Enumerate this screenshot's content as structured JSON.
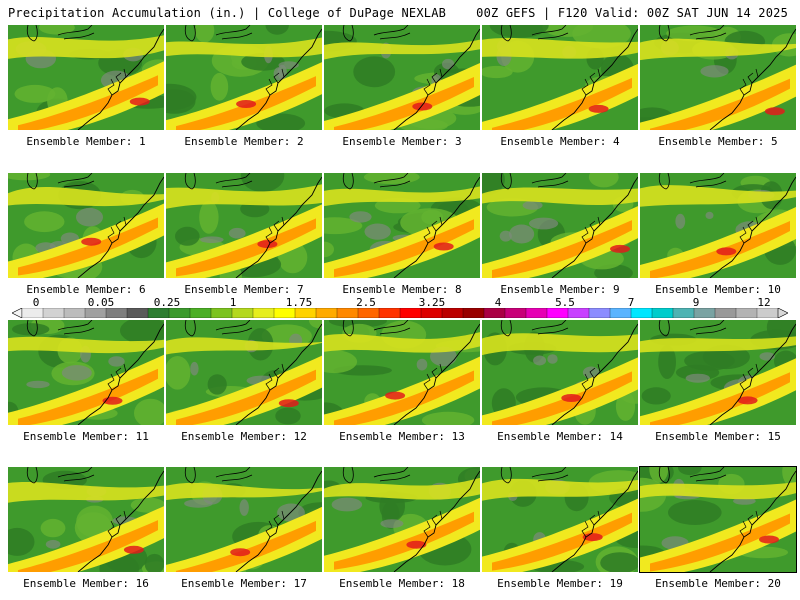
{
  "header": {
    "title": "Precipitation Accumulation (in.) | College of DuPage NEXLAB",
    "valid_text": "00Z GEFS | F120 Valid: 00Z SAT JUN 14 2025"
  },
  "colorbar": {
    "tick_labels": [
      "0",
      "0.05",
      "0.25",
      "1",
      "1.75",
      "2.5",
      "3.25",
      "4",
      "5.5",
      "7",
      "9",
      "12"
    ],
    "colors": [
      "#ececec",
      "#d2d2d2",
      "#bcbcbc",
      "#a0a0a0",
      "#7e7e7e",
      "#5a5a5a",
      "#2e7d32",
      "#3c9a2e",
      "#4caf26",
      "#7cc31f",
      "#b4d81e",
      "#e6ee1e",
      "#ffff00",
      "#ffd200",
      "#ffaa00",
      "#ff8800",
      "#ff6600",
      "#ff3300",
      "#ff0000",
      "#dd0000",
      "#bb0000",
      "#990000",
      "#aa0044",
      "#c80078",
      "#e600b4",
      "#ff00ff",
      "#c840ff",
      "#8c8cff",
      "#5ab4ff",
      "#00e6ff",
      "#00cccc",
      "#4db3b3",
      "#7aa3a3",
      "#999999",
      "#b3b3b3",
      "#cccccc"
    ]
  },
  "members": [
    {
      "label": "Ensemble Member: 1"
    },
    {
      "label": "Ensemble Member: 2"
    },
    {
      "label": "Ensemble Member: 3"
    },
    {
      "label": "Ensemble Member: 4"
    },
    {
      "label": "Ensemble Member: 5"
    },
    {
      "label": "Ensemble Member: 6"
    },
    {
      "label": "Ensemble Member: 7"
    },
    {
      "label": "Ensemble Member: 8"
    },
    {
      "label": "Ensemble Member: 9"
    },
    {
      "label": "Ensemble Member: 10"
    },
    {
      "label": "Ensemble Member: 11"
    },
    {
      "label": "Ensemble Member: 12"
    },
    {
      "label": "Ensemble Member: 13"
    },
    {
      "label": "Ensemble Member: 14"
    },
    {
      "label": "Ensemble Member: 15"
    },
    {
      "label": "Ensemble Member: 16"
    },
    {
      "label": "Ensemble Member: 17"
    },
    {
      "label": "Ensemble Member: 18"
    },
    {
      "label": "Ensemble Member: 19"
    },
    {
      "label": "Ensemble Member: 20"
    }
  ]
}
